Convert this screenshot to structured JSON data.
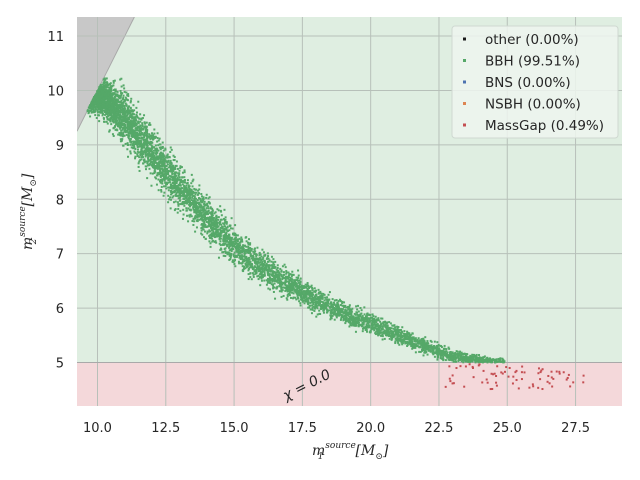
{
  "chart_data": {
    "type": "scatter",
    "title": "",
    "xlabel": {
      "base": "m",
      "sub": "1",
      "sup": "source",
      "unit_open": "[M",
      "unit_sub": "⊙",
      "unit_close": "]"
    },
    "ylabel": {
      "base": "m",
      "sub": "2",
      "sup": "source",
      "unit_open": "[M",
      "unit_sub": "⊙",
      "unit_close": "]"
    },
    "xlim": [
      9.25,
      29.2
    ],
    "ylim": [
      4.2,
      11.35
    ],
    "xticks": [
      "10.0",
      "12.5",
      "15.0",
      "17.5",
      "20.0",
      "22.5",
      "25.0",
      "27.5"
    ],
    "xtick_values": [
      10.0,
      12.5,
      15.0,
      17.5,
      20.0,
      22.5,
      25.0,
      27.5
    ],
    "yticks": [
      "5",
      "6",
      "7",
      "8",
      "9",
      "10",
      "11"
    ],
    "ytick_values": [
      5,
      6,
      7,
      8,
      9,
      10,
      11
    ],
    "grid": true,
    "legend_position": "top-right",
    "series": [
      {
        "name": "other (0.00%)",
        "color": "#1a1a1a",
        "points": []
      },
      {
        "name": "BBH (99.51%)",
        "color": "#55a868",
        "ridge": [
          [
            9.6,
            9.9
          ],
          [
            10.2,
            9.9
          ],
          [
            11.0,
            9.5
          ],
          [
            12.0,
            8.85
          ],
          [
            13.0,
            8.2
          ],
          [
            14.0,
            7.65
          ],
          [
            15.0,
            7.15
          ],
          [
            16.0,
            6.75
          ],
          [
            17.0,
            6.45
          ],
          [
            18.0,
            6.15
          ],
          [
            19.0,
            5.9
          ],
          [
            20.0,
            5.72
          ],
          [
            21.0,
            5.5
          ],
          [
            22.0,
            5.3
          ],
          [
            22.5,
            5.2
          ],
          [
            23.0,
            5.12
          ],
          [
            24.0,
            5.04
          ],
          [
            24.5,
            5.0
          ]
        ],
        "spread": [
          [
            9.6,
            0.22
          ],
          [
            11.0,
            0.42
          ],
          [
            13.0,
            0.35
          ],
          [
            15.0,
            0.3
          ],
          [
            17.0,
            0.22
          ],
          [
            20.0,
            0.15
          ],
          [
            23.0,
            0.1
          ],
          [
            24.5,
            0.06
          ]
        ]
      },
      {
        "name": "BNS (0.00%)",
        "color": "#4c72b0",
        "points": []
      },
      {
        "name": "NSBH (0.00%)",
        "color": "#dd8452",
        "points": []
      },
      {
        "name": "MassGap (0.49%)",
        "color": "#c44e52",
        "region_x": [
          22.6,
          27.8
        ],
        "region_y": [
          4.5,
          4.98
        ]
      }
    ],
    "regions": [
      {
        "name": "excluded m2>m1",
        "color": "#c8c8c8",
        "bound": "m2 > m1"
      },
      {
        "name": "BBH region",
        "color": "#dfeee1",
        "y_range": [
          5,
          11.35
        ]
      },
      {
        "name": "MassGap region",
        "color": "#f4d8da",
        "y_range": [
          4.2,
          5
        ]
      }
    ],
    "annotations": [
      {
        "text": "χ = 0.0",
        "x": 16.9,
        "y": 4.3
      }
    ]
  }
}
